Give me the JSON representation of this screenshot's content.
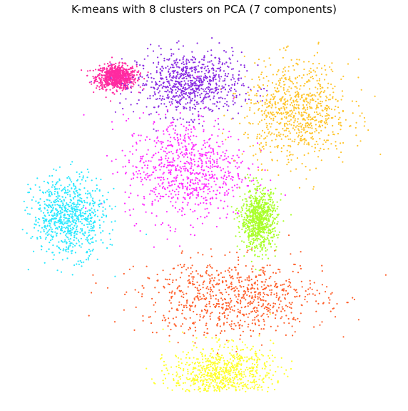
{
  "chart_data": {
    "type": "scatter",
    "title": "K-means with 8 clusters on PCA (7 components)",
    "xlabel": "",
    "ylabel": "",
    "axes_visible": false,
    "grid": false,
    "legend": "none",
    "xlim": [
      -10,
      10
    ],
    "ylim": [
      -10,
      10
    ],
    "marker": "small dot",
    "points_per_cluster_approx": 800,
    "clusters": [
      {
        "id": 0,
        "color": "#ff2aa0",
        "centroid": [
          -4.8,
          7.4
        ],
        "spread": [
          1.0,
          0.6
        ]
      },
      {
        "id": 1,
        "color": "#8a2be2",
        "centroid": [
          -0.8,
          7.0
        ],
        "spread": [
          2.6,
          1.6
        ]
      },
      {
        "id": 2,
        "color": "#ff2aff",
        "centroid": [
          -1.0,
          2.3
        ],
        "spread": [
          3.0,
          2.6
        ]
      },
      {
        "id": 3,
        "color": "#ffc42a",
        "centroid": [
          5.1,
          5.5
        ],
        "spread": [
          2.6,
          2.5
        ]
      },
      {
        "id": 4,
        "color": "#2ae8ff",
        "centroid": [
          -7.4,
          -0.3
        ],
        "spread": [
          1.8,
          2.0
        ]
      },
      {
        "id": 5,
        "color": "#a9ff2a",
        "centroid": [
          3.0,
          -0.5
        ],
        "spread": [
          0.9,
          1.5
        ]
      },
      {
        "id": 6,
        "color": "#ff5f2a",
        "centroid": [
          1.6,
          -4.8
        ],
        "spread": [
          4.6,
          1.9
        ]
      },
      {
        "id": 7,
        "color": "#ffff2a",
        "centroid": [
          1.0,
          -9.0
        ],
        "spread": [
          2.5,
          1.4
        ]
      }
    ]
  }
}
